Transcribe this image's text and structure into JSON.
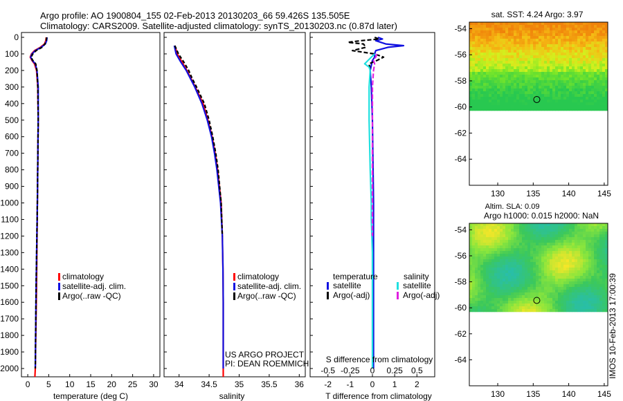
{
  "header": {
    "line1": "Argo profile: AO 1900804_155 02-Feb-2013 20130203_66 59.426S 135.505E",
    "line2": "Climatology: CARS2009. Satellite-adjusted climatology: synTS_20130203.nc (0.87d later)"
  },
  "depth_ticks": [
    "0",
    "100",
    "200",
    "300",
    "400",
    "500",
    "600",
    "700",
    "800",
    "900",
    "1000",
    "1100",
    "1200",
    "1300",
    "1400",
    "1500",
    "1600",
    "1700",
    "1800",
    "1900",
    "2000"
  ],
  "credit": {
    "line1": "US ARGO PROJECT",
    "line2": "PI: DEAN ROEMMICH"
  },
  "side_stamp": "IMOS 10-Feb-2013 17:00:39",
  "colors": {
    "climatology": "#ff0000",
    "satellite": "#1010e0",
    "argo": "#000000",
    "satellite_s": "#20e0e0",
    "argo_s": "#e020e0"
  },
  "chart_data": [
    {
      "id": "temperature",
      "type": "line",
      "xlabel": "temperature (deg C)",
      "xticks": [
        "0",
        "5",
        "10",
        "15",
        "20",
        "25",
        "30"
      ],
      "xlim": [
        -1.5,
        31.5
      ],
      "ylim": [
        2050,
        0
      ],
      "legend": [
        "climatology",
        "satellite-adj. clim.",
        "Argo(..raw -QC)"
      ],
      "series": [
        {
          "name": "climatology",
          "color": "#ff0000",
          "dash": "",
          "depth": [
            0,
            20,
            40,
            60,
            80,
            100,
            120,
            140,
            160,
            200,
            300,
            500,
            1000,
            1500,
            2000,
            2050
          ],
          "values": [
            4.4,
            4.3,
            4.0,
            3.0,
            1.6,
            0.9,
            0.6,
            1.0,
            1.6,
            2.1,
            2.4,
            2.5,
            2.3,
            2.1,
            1.8,
            1.7
          ]
        },
        {
          "name": "satellite-adj. clim.",
          "color": "#1010e0",
          "dash": "",
          "depth": [
            0,
            20,
            40,
            60,
            80,
            100,
            120,
            140,
            160,
            200,
            300,
            500,
            1000,
            1500,
            2000
          ],
          "values": [
            4.6,
            4.5,
            4.2,
            3.2,
            1.8,
            1.0,
            0.7,
            1.1,
            1.8,
            2.2,
            2.5,
            2.5,
            2.3,
            2.0,
            1.8
          ]
        },
        {
          "name": "Argo(..raw -QC)",
          "color": "#000000",
          "dash": "5,3",
          "depth": [
            0,
            20,
            40,
            60,
            80,
            100,
            120,
            140,
            160,
            200,
            300,
            500,
            1000,
            1500,
            2000
          ],
          "values": [
            4.5,
            4.4,
            4.1,
            3.4,
            2.0,
            1.2,
            0.8,
            1.2,
            1.9,
            2.2,
            2.4,
            2.5,
            2.3,
            2.0,
            1.8
          ]
        }
      ]
    },
    {
      "id": "salinity",
      "type": "line",
      "xlabel": "salinity",
      "xticks": [
        "34",
        "34.5",
        "35",
        "35.5",
        "36"
      ],
      "xlim": [
        33.75,
        36.1
      ],
      "ylim": [
        2050,
        0
      ],
      "legend": [
        "climatology",
        "satellite-adj. clim.",
        "Argo(..raw -QC)"
      ],
      "series": [
        {
          "name": "climatology",
          "color": "#ff0000",
          "dash": "",
          "depth": [
            50,
            100,
            150,
            200,
            250,
            300,
            400,
            500,
            600,
            700,
            800,
            1000,
            1200,
            1400,
            1600,
            1800,
            2000,
            2050
          ],
          "values": [
            33.93,
            33.97,
            34.05,
            34.13,
            34.2,
            34.27,
            34.4,
            34.48,
            34.55,
            34.6,
            34.64,
            34.7,
            34.72,
            34.73,
            34.735,
            34.735,
            34.735,
            34.735
          ]
        },
        {
          "name": "satellite-adj. clim.",
          "color": "#1010e0",
          "dash": "",
          "depth": [
            50,
            100,
            150,
            200,
            250,
            300,
            400,
            500,
            600,
            700,
            800,
            1000,
            1200,
            1400,
            1600,
            1800,
            2000
          ],
          "values": [
            33.92,
            33.95,
            34.03,
            34.12,
            34.19,
            34.26,
            34.38,
            34.47,
            34.54,
            34.59,
            34.63,
            34.69,
            34.72,
            34.73,
            34.735,
            34.735,
            34.735
          ]
        },
        {
          "name": "Argo(..raw -QC)",
          "color": "#000000",
          "dash": "5,3",
          "depth": [
            50,
            100,
            150,
            200,
            250,
            300,
            400,
            500,
            600,
            700,
            800,
            1000,
            1200
          ],
          "values": [
            33.93,
            33.99,
            34.08,
            34.16,
            34.22,
            34.29,
            34.42,
            34.5,
            34.56,
            34.61,
            34.65,
            34.7,
            34.72
          ]
        }
      ]
    },
    {
      "id": "difference",
      "type": "line",
      "xlabel": "T difference from climatology",
      "xlabel_top": "S difference from climatology",
      "xticks": [
        "-2",
        "-1",
        "0",
        "1",
        "2"
      ],
      "xticks_top": [
        "-0.5",
        "-0.25",
        "0",
        "0.25",
        "0.5"
      ],
      "xlim": [
        -2.8,
        2.8
      ],
      "ylim": [
        2050,
        0
      ],
      "legend_titles": [
        "temperature",
        "salinity"
      ],
      "legend_left": [
        "satellite",
        "Argo(-adj)"
      ],
      "legend_right": [
        "satellite",
        "Argo(-adj)"
      ],
      "series": [
        {
          "name": "temperature satellite",
          "color": "#1010e0",
          "dash": "",
          "depth": [
            0,
            10,
            20,
            40,
            50,
            60,
            80,
            100,
            120,
            140,
            200,
            300,
            500,
            1000,
            1500,
            2000
          ],
          "values": [
            0.25,
            0.45,
            0.15,
            0.6,
            1.4,
            0.7,
            0.15,
            0.1,
            0.1,
            0.0,
            -0.1,
            -0.05,
            0.0,
            0.05,
            0.05,
            0.05
          ]
        },
        {
          "name": "temperature Argo(-adj)",
          "color": "#000000",
          "dash": "6,3",
          "depth": [
            0,
            10,
            20,
            30,
            40,
            60,
            80,
            100,
            120,
            140,
            160,
            200
          ],
          "values": [
            0.1,
            0.3,
            -0.5,
            -1.1,
            -0.4,
            -0.3,
            -0.9,
            0.1,
            0.5,
            0.2,
            -0.15,
            -0.1
          ]
        },
        {
          "name": "salinity satellite",
          "color": "#20e0e0",
          "dash": "",
          "depth": [
            100,
            120,
            140,
            160,
            180,
            200,
            300,
            500,
            800,
            1000,
            1100,
            1300,
            1500,
            1800,
            2000
          ],
          "values": [
            0.1,
            -0.05,
            -0.2,
            -0.35,
            -0.15,
            -0.1,
            -0.15,
            -0.15,
            -0.1,
            -0.05,
            -0.05,
            0.0,
            0.0,
            0.0,
            0.0
          ]
        },
        {
          "name": "salinity Argo(-adj)",
          "color": "#e020e0",
          "dash": "7,3",
          "depth": [
            100,
            120,
            140,
            160,
            200,
            300,
            500,
            700,
            1000,
            1200
          ],
          "values": [
            0.2,
            0.15,
            0.05,
            0.1,
            0.05,
            0.0,
            0.0,
            0.0,
            0.0,
            0.0
          ]
        }
      ]
    },
    {
      "id": "sst_map",
      "type": "heatmap",
      "title": "sat. SST: 4.24 Argo: 3.97",
      "xticks": [
        "130",
        "135",
        "140",
        "145"
      ],
      "yticks": [
        "-54",
        "-56",
        "-58",
        "-60",
        "-62",
        "-64"
      ],
      "xlim": [
        126,
        145.5
      ],
      "ylim": [
        -53.5,
        -66
      ],
      "data_ylim": [
        -53.5,
        -60.1
      ],
      "argo_position": {
        "lon": 135.5,
        "lat": -59.43
      }
    },
    {
      "id": "sla_map",
      "type": "heatmap",
      "title": "Altim. SLA: 0.09",
      "subtitle": "Argo h1000: 0.015 h2000: NaN",
      "xticks": [
        "130",
        "135",
        "140",
        "145"
      ],
      "yticks": [
        "-54",
        "-56",
        "-58",
        "-60",
        "-62",
        "-64"
      ],
      "xlim": [
        126,
        145.5
      ],
      "ylim": [
        -53.5,
        -66
      ],
      "data_ylim": [
        -53.5,
        -60.1
      ],
      "argo_position": {
        "lon": 135.5,
        "lat": -59.43
      }
    }
  ]
}
